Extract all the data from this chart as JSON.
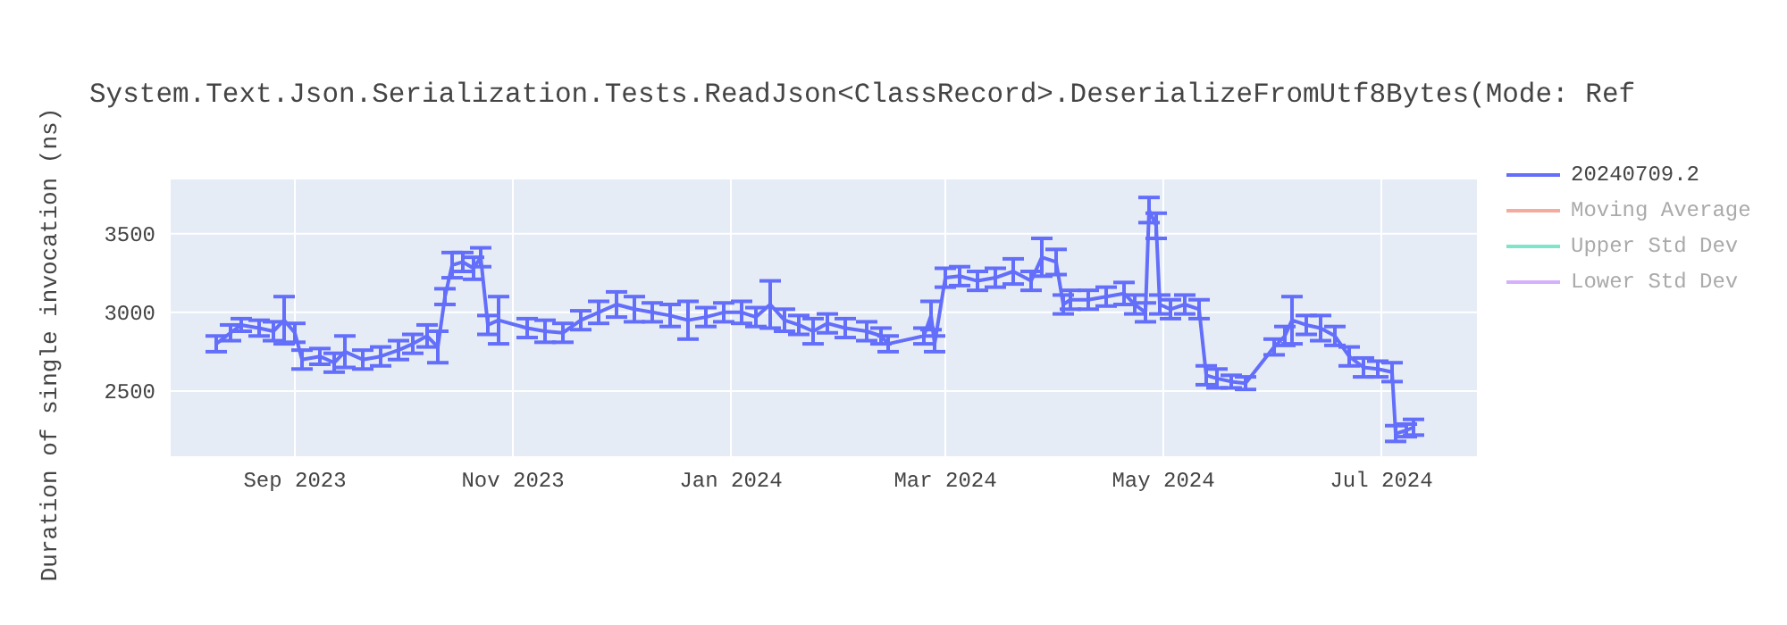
{
  "chart_data": {
    "type": "line",
    "title": "System.Text.Json.Serialization.Tests.ReadJson<ClassRecord>.DeserializeFromUtf8Bytes(Mode: Ref",
    "ylabel": "Duration of single invocation (ns)",
    "x": [
      "2023-08-10",
      "2023-08-14",
      "2023-08-17",
      "2023-08-22",
      "2023-08-26",
      "2023-08-29",
      "2023-09-01",
      "2023-09-03",
      "2023-09-08",
      "2023-09-12",
      "2023-09-15",
      "2023-09-20",
      "2023-09-25",
      "2023-09-30",
      "2023-10-04",
      "2023-10-08",
      "2023-10-11",
      "2023-10-13",
      "2023-10-15",
      "2023-10-18",
      "2023-10-21",
      "2023-10-23",
      "2023-10-25",
      "2023-10-28",
      "2023-11-05",
      "2023-11-10",
      "2023-11-15",
      "2023-11-20",
      "2023-11-25",
      "2023-11-30",
      "2023-12-05",
      "2023-12-10",
      "2023-12-15",
      "2023-12-20",
      "2023-12-25",
      "2023-12-30",
      "2024-01-04",
      "2024-01-08",
      "2024-01-12",
      "2024-01-16",
      "2024-01-20",
      "2024-01-24",
      "2024-01-28",
      "2024-02-02",
      "2024-02-08",
      "2024-02-12",
      "2024-02-14",
      "2024-02-24",
      "2024-02-26",
      "2024-02-27",
      "2024-03-01",
      "2024-03-05",
      "2024-03-10",
      "2024-03-15",
      "2024-03-20",
      "2024-03-25",
      "2024-03-28",
      "2024-04-01",
      "2024-04-03",
      "2024-04-05",
      "2024-04-10",
      "2024-04-15",
      "2024-04-20",
      "2024-04-23",
      "2024-04-26",
      "2024-04-27",
      "2024-04-29",
      "2024-04-30",
      "2024-05-03",
      "2024-05-07",
      "2024-05-11",
      "2024-05-13",
      "2024-05-16",
      "2024-05-20",
      "2024-05-24",
      "2024-06-01",
      "2024-06-04",
      "2024-06-06",
      "2024-06-10",
      "2024-06-14",
      "2024-06-18",
      "2024-06-22",
      "2024-06-26",
      "2024-06-30",
      "2024-07-04",
      "2024-07-05",
      "2024-07-08",
      "2024-07-10"
    ],
    "series": [
      {
        "name": "20240709.2",
        "color": "#636efa",
        "values": [
          2800,
          2870,
          2920,
          2900,
          2880,
          2950,
          2870,
          2700,
          2720,
          2680,
          2750,
          2700,
          2720,
          2760,
          2800,
          2850,
          2780,
          3100,
          3300,
          3320,
          3280,
          3350,
          2920,
          2950,
          2900,
          2880,
          2870,
          2950,
          3000,
          3050,
          3020,
          3000,
          2980,
          2950,
          2970,
          3000,
          3000,
          2970,
          3050,
          2950,
          2920,
          2880,
          2930,
          2900,
          2880,
          2850,
          2800,
          2850,
          2980,
          2800,
          3220,
          3230,
          3200,
          3220,
          3260,
          3200,
          3350,
          3320,
          3050,
          3080,
          3080,
          3100,
          3120,
          3050,
          3000,
          3650,
          3550,
          3050,
          3020,
          3050,
          3020,
          2600,
          2580,
          2560,
          2550,
          2780,
          2850,
          2950,
          2920,
          2900,
          2850,
          2720,
          2650,
          2640,
          2620,
          2230,
          2250,
          2270
        ],
        "errors": [
          50,
          50,
          40,
          50,
          60,
          150,
          60,
          60,
          50,
          60,
          100,
          60,
          60,
          60,
          60,
          70,
          100,
          50,
          80,
          60,
          70,
          60,
          60,
          150,
          60,
          70,
          60,
          60,
          70,
          80,
          80,
          60,
          70,
          120,
          60,
          60,
          70,
          60,
          150,
          70,
          60,
          80,
          60,
          60,
          60,
          50,
          50,
          50,
          90,
          50,
          60,
          60,
          60,
          60,
          80,
          60,
          120,
          80,
          60,
          60,
          60,
          60,
          70,
          60,
          60,
          80,
          80,
          60,
          60,
          60,
          60,
          60,
          60,
          40,
          40,
          50,
          60,
          150,
          60,
          80,
          60,
          60,
          60,
          50,
          60,
          50,
          40,
          50
        ]
      },
      {
        "name": "Moving Average",
        "color": "#f4aa9c",
        "values": [
          null,
          null,
          null,
          null,
          null,
          null,
          null,
          null,
          null,
          null,
          null,
          null,
          null,
          null,
          null,
          null,
          null,
          null,
          null,
          null,
          null,
          null,
          null,
          null,
          null,
          null,
          null,
          null,
          null,
          null,
          null,
          null,
          null,
          null,
          null,
          null,
          null,
          null,
          null,
          null,
          null,
          null,
          null,
          null,
          null,
          null,
          null,
          null,
          null,
          null,
          null,
          null,
          null,
          null,
          null,
          null,
          null,
          null,
          null,
          null,
          null,
          null,
          null,
          null,
          null,
          null,
          null,
          null,
          null,
          null,
          null,
          null,
          null,
          null,
          null,
          null,
          null,
          null,
          null,
          null,
          null,
          null,
          null,
          null,
          null,
          null,
          null,
          null
        ]
      },
      {
        "name": "Upper Std Dev",
        "color": "#7fe5ca",
        "values": [
          null,
          null,
          null,
          null,
          null,
          null,
          null,
          null,
          null,
          null,
          null,
          null,
          null,
          null,
          null,
          null,
          null,
          null,
          null,
          null,
          null,
          null,
          null,
          null,
          null,
          null,
          null,
          null,
          null,
          null,
          null,
          null,
          null,
          null,
          null,
          null,
          null,
          null,
          null,
          null,
          null,
          null,
          null,
          null,
          null,
          null,
          null,
          null,
          null,
          null,
          null,
          null,
          null,
          null,
          null,
          null,
          null,
          null,
          null,
          null,
          null,
          null,
          null,
          null,
          null,
          null,
          null,
          null,
          null,
          null,
          null,
          null,
          null,
          null,
          null,
          null,
          null,
          null,
          null,
          null,
          null,
          null,
          null,
          null,
          null,
          null,
          null,
          null
        ]
      },
      {
        "name": "Lower Std Dev",
        "color": "#d5b1fc",
        "values": [
          null,
          null,
          null,
          null,
          null,
          null,
          null,
          null,
          null,
          null,
          null,
          null,
          null,
          null,
          null,
          null,
          null,
          null,
          null,
          null,
          null,
          null,
          null,
          null,
          null,
          null,
          null,
          null,
          null,
          null,
          null,
          null,
          null,
          null,
          null,
          null,
          null,
          null,
          null,
          null,
          null,
          null,
          null,
          null,
          null,
          null,
          null,
          null,
          null,
          null,
          null,
          null,
          null,
          null,
          null,
          null,
          null,
          null,
          null,
          null,
          null,
          null,
          null,
          null,
          null,
          null,
          null,
          null,
          null,
          null,
          null,
          null,
          null,
          null,
          null,
          null,
          null,
          null,
          null,
          null,
          null,
          null,
          null,
          null,
          null,
          null,
          null,
          null
        ]
      }
    ],
    "xlim": [
      "2023-07-28",
      "2024-07-28"
    ],
    "xticks": [
      {
        "value": "2023-09-01",
        "label": "Sep 2023"
      },
      {
        "value": "2023-11-01",
        "label": "Nov 2023"
      },
      {
        "value": "2024-01-01",
        "label": "Jan 2024"
      },
      {
        "value": "2024-03-01",
        "label": "Mar 2024"
      },
      {
        "value": "2024-05-01",
        "label": "May 2024"
      },
      {
        "value": "2024-07-01",
        "label": "Jul 2024"
      }
    ],
    "ylim": [
      2080,
      3850
    ],
    "yticks": [
      2500,
      3000,
      3500
    ],
    "grid": true,
    "legend": "top right"
  }
}
